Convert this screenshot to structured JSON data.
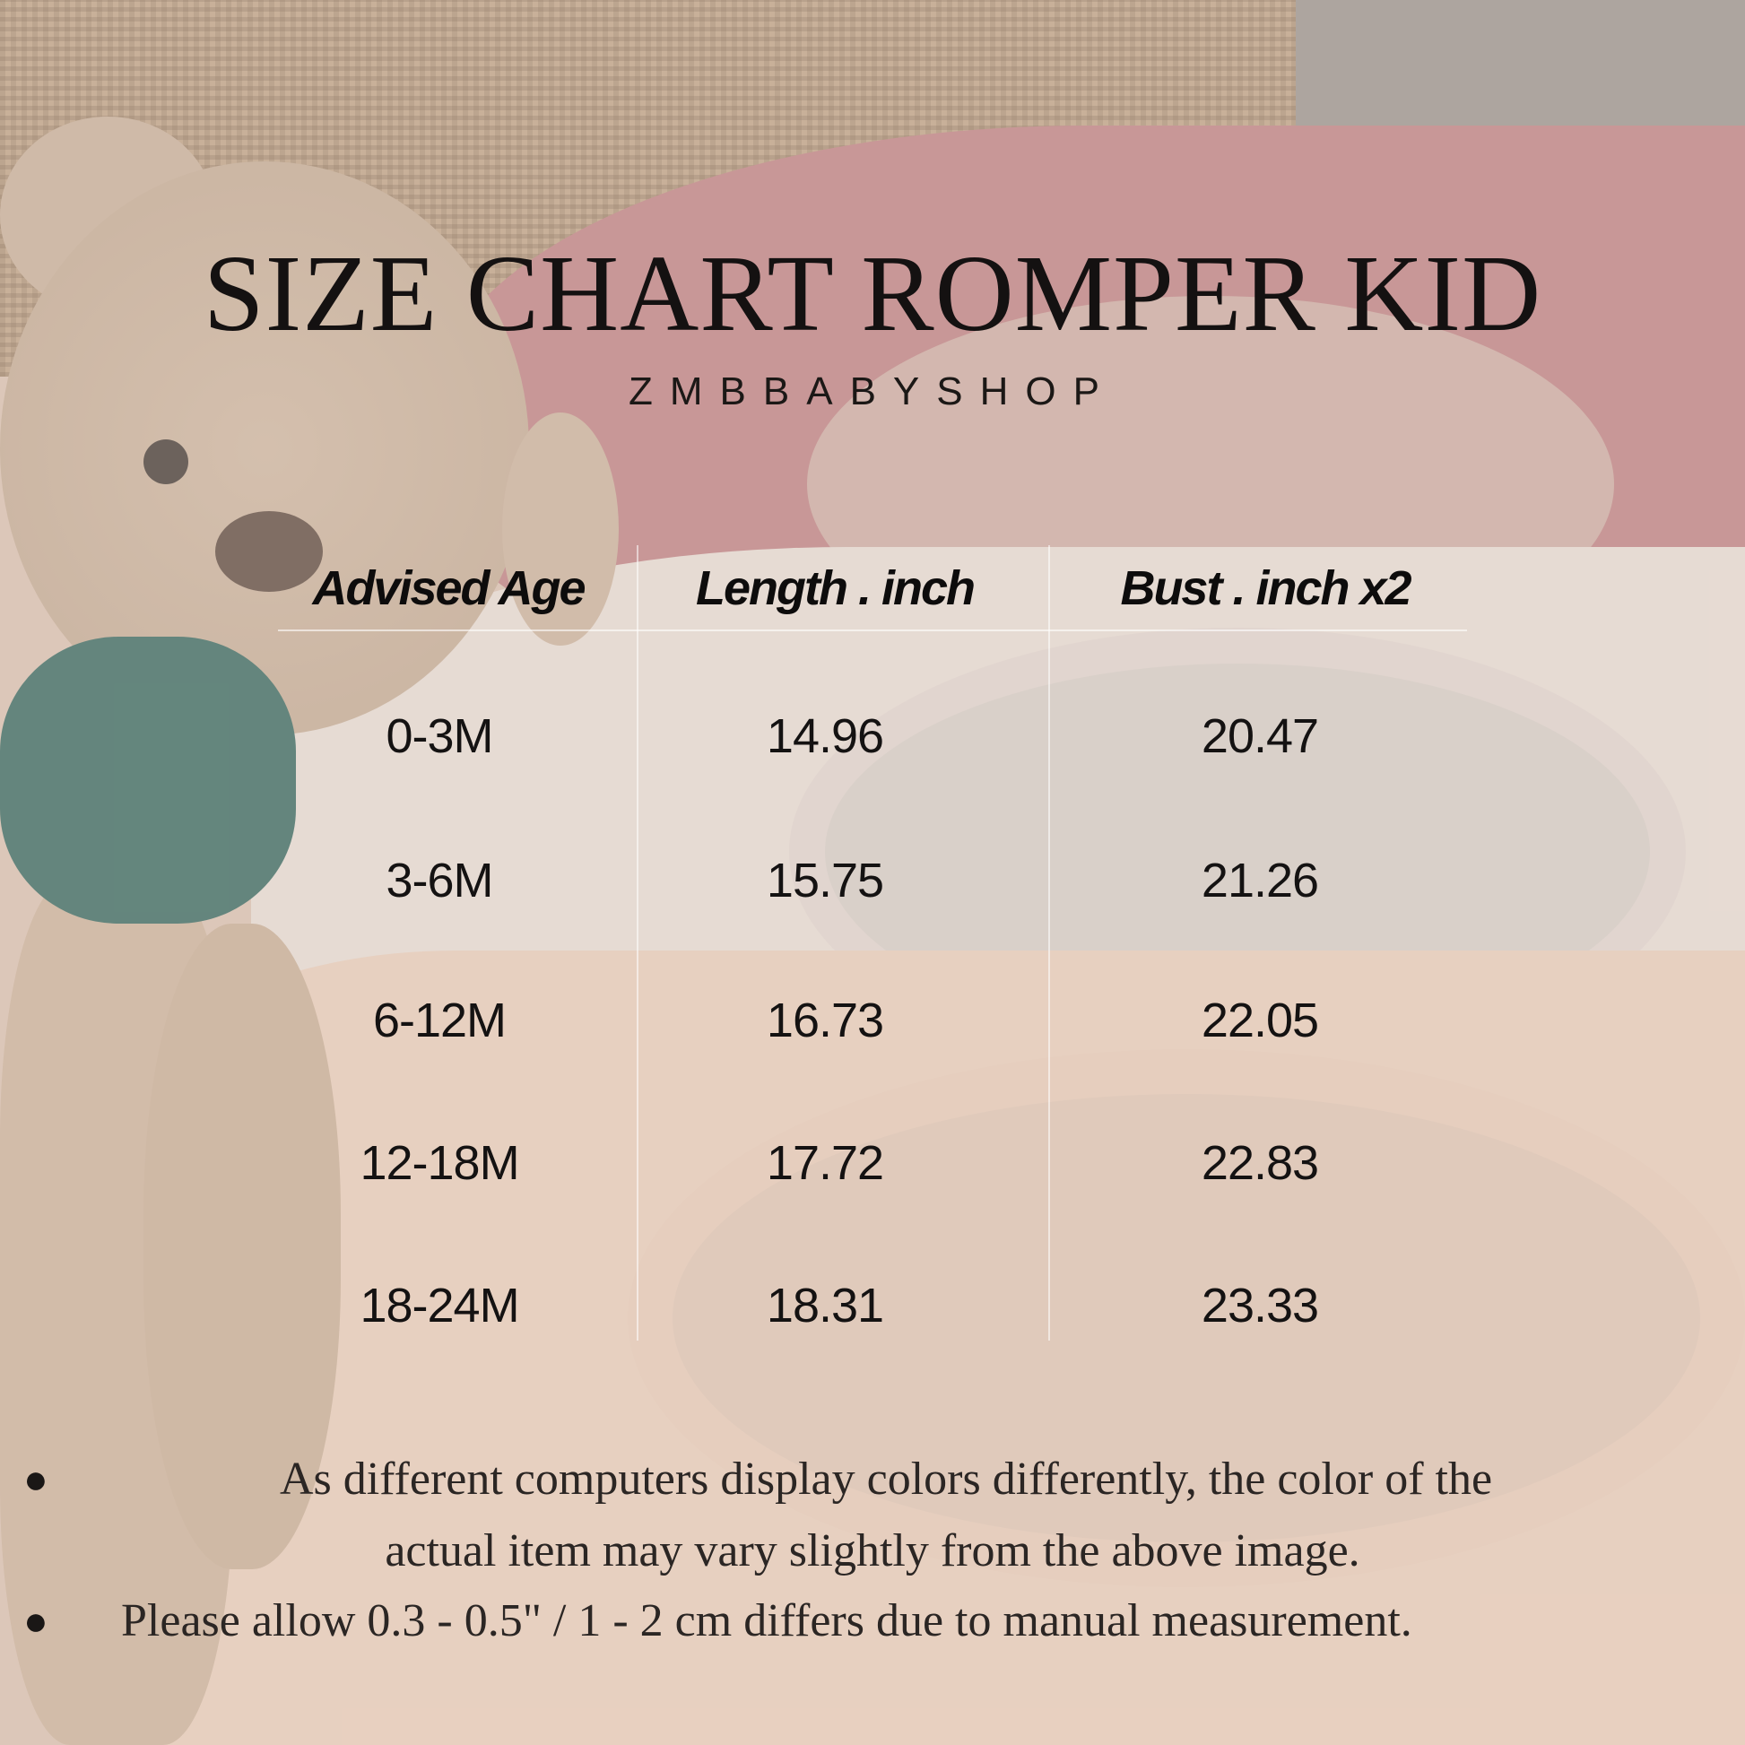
{
  "title": "SIZE CHART ROMPER KID",
  "subtitle": "ZMBBABYSHOP",
  "table": {
    "headers": [
      "Advised Age",
      "Length . inch",
      "Bust . inch x2"
    ],
    "rows": [
      [
        "0-3M",
        "14.96",
        "20.47"
      ],
      [
        "3-6M",
        "15.75",
        "21.26"
      ],
      [
        "6-12M",
        "16.73",
        "22.05"
      ],
      [
        "12-18M",
        "17.72",
        "22.83"
      ],
      [
        "18-24M",
        "18.31",
        "23.33"
      ]
    ]
  },
  "notes": [
    {
      "line1": "As different computers display colors differently, the color of the",
      "line2": "actual item may vary slightly from the above image."
    },
    {
      "line1": "Please allow 0.3 - 0.5\" / 1 - 2 cm differs due to manual measurement."
    }
  ],
  "colors": {
    "text": "#141111",
    "pink_sweater": "#b9757a",
    "white_sweater": "#e7ddd6",
    "peach_sweater": "#e9cdb9",
    "burlap": "#ad9173"
  }
}
